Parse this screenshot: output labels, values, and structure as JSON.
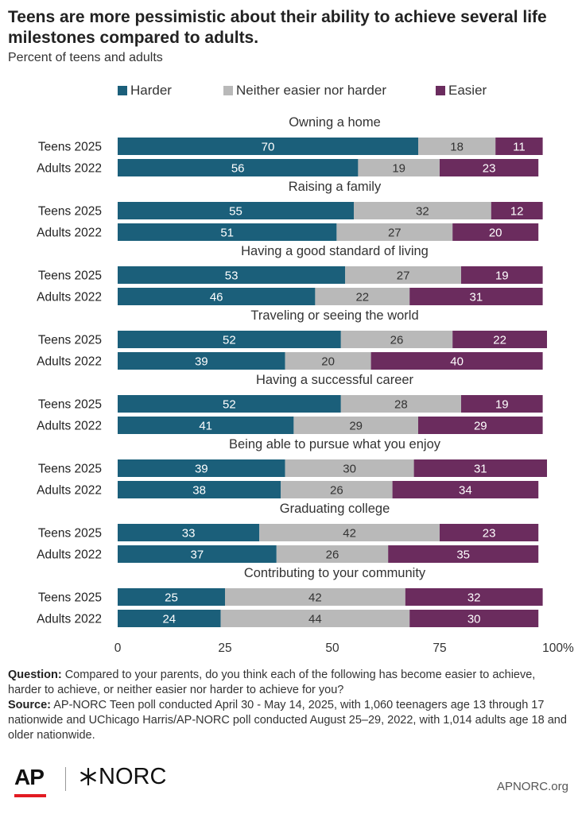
{
  "title": "Teens are more pessimistic about their ability to achieve several life milestones compared to adults.",
  "subtitle": "Percent of teens and adults",
  "legend": [
    {
      "label": "Harder",
      "color": "#1b5f7a"
    },
    {
      "label": "Neither easier nor harder",
      "color": "#b9b9b9"
    },
    {
      "label": "Easier",
      "color": "#6b2c5e"
    }
  ],
  "chart_data": {
    "type": "bar",
    "orientation": "horizontal",
    "stacked": true,
    "xlim": [
      0,
      100
    ],
    "xticks": [
      "0",
      "25",
      "50",
      "75",
      "100%"
    ],
    "grid": false,
    "legend_position": "top",
    "series_names": [
      "Harder",
      "Neither easier nor harder",
      "Easier"
    ],
    "groups": [
      {
        "name": "Owning a home",
        "rows": [
          {
            "label": "Teens 2025",
            "values": [
              70,
              18,
              11
            ]
          },
          {
            "label": "Adults 2022",
            "values": [
              56,
              19,
              23
            ]
          }
        ]
      },
      {
        "name": "Raising a family",
        "rows": [
          {
            "label": "Teens 2025",
            "values": [
              55,
              32,
              12
            ]
          },
          {
            "label": "Adults 2022",
            "values": [
              51,
              27,
              20
            ]
          }
        ]
      },
      {
        "name": "Having a good standard of living",
        "rows": [
          {
            "label": "Teens 2025",
            "values": [
              53,
              27,
              19
            ]
          },
          {
            "label": "Adults 2022",
            "values": [
              46,
              22,
              31
            ]
          }
        ]
      },
      {
        "name": "Traveling or seeing the world",
        "rows": [
          {
            "label": "Teens 2025",
            "values": [
              52,
              26,
              22
            ]
          },
          {
            "label": "Adults 2022",
            "values": [
              39,
              20,
              40
            ]
          }
        ]
      },
      {
        "name": "Having a successful career",
        "rows": [
          {
            "label": "Teens 2025",
            "values": [
              52,
              28,
              19
            ]
          },
          {
            "label": "Adults 2022",
            "values": [
              41,
              29,
              29
            ]
          }
        ]
      },
      {
        "name": "Being able to pursue what you enjoy",
        "rows": [
          {
            "label": "Teens 2025",
            "values": [
              39,
              30,
              31
            ]
          },
          {
            "label": "Adults 2022",
            "values": [
              38,
              26,
              34
            ]
          }
        ]
      },
      {
        "name": "Graduating college",
        "rows": [
          {
            "label": "Teens 2025",
            "values": [
              33,
              42,
              23
            ]
          },
          {
            "label": "Adults 2022",
            "values": [
              37,
              26,
              35
            ]
          }
        ]
      },
      {
        "name": "Contributing to your community",
        "rows": [
          {
            "label": "Teens 2025",
            "values": [
              25,
              42,
              32
            ]
          },
          {
            "label": "Adults 2022",
            "values": [
              24,
              44,
              30
            ]
          }
        ]
      }
    ]
  },
  "notes": {
    "question_label": "Question:",
    "question_text": "Compared to your parents, do you think each of the following has become easier to achieve, harder to achieve, or neither easier nor harder to achieve for you?",
    "source_label": "Source:",
    "source_text": "AP-NORC Teen poll conducted April 30 - May 14, 2025, with 1,060 teenagers age 13 through 17 nationwide and UChicago Harris/AP-NORC poll conducted August 25–29, 2022, with 1,014 adults age 18 and older nationwide."
  },
  "footer": {
    "logo_ap": "AP",
    "logo_norc": "NORC",
    "site": "APNORC.org"
  }
}
